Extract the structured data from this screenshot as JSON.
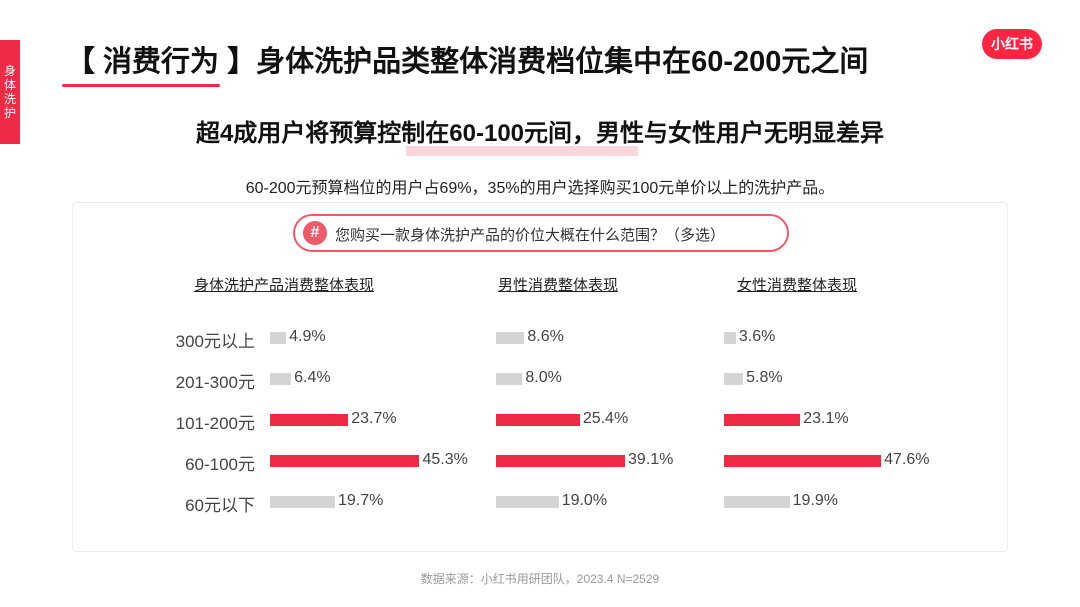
{
  "side_tab": "身体洗护",
  "logo": "小红书",
  "title": "【 消费行为 】身体洗护品类整体消费档位集中在60-200元之间",
  "subtitle": "超4成用户将预算控制在60-100元间，男性与女性用户无明显差异",
  "description": "60-200元预算档位的用户占69%，35%的用户选择购买100元单价以上的洗护产品。",
  "question": {
    "icon": "#",
    "text": "您购买一款身体洗护产品的价位大概在什么范围？（多选）"
  },
  "source": "数据来源：小红书用研团队，2023.4 N=2529",
  "colors": {
    "highlight": "#ee2a44",
    "normal": "#d4d4d4"
  },
  "chart_data": {
    "type": "bar",
    "orientation": "horizontal",
    "categories": [
      "300元以上",
      "201-300元",
      "101-200元",
      "60-100元",
      "60元以下"
    ],
    "highlighted_categories": [
      "101-200元",
      "60-100元"
    ],
    "panels": [
      {
        "title": "身体洗护产品消费整体表现",
        "values": [
          4.9,
          6.4,
          23.7,
          45.3,
          19.7
        ],
        "labels": [
          "4.9%",
          "6.4%",
          "23.7%",
          "45.3%",
          "19.7%"
        ]
      },
      {
        "title": "男性消费整体表现",
        "values": [
          8.6,
          8.0,
          25.4,
          39.1,
          19.0
        ],
        "labels": [
          "8.6%",
          "8.0%",
          "25.4%",
          "39.1%",
          "19.0%"
        ]
      },
      {
        "title": "女性消费整体表现",
        "values": [
          3.6,
          5.8,
          23.1,
          47.6,
          19.9
        ],
        "labels": [
          "3.6%",
          "5.8%",
          "23.1%",
          "47.6%",
          "19.9%"
        ]
      }
    ]
  }
}
